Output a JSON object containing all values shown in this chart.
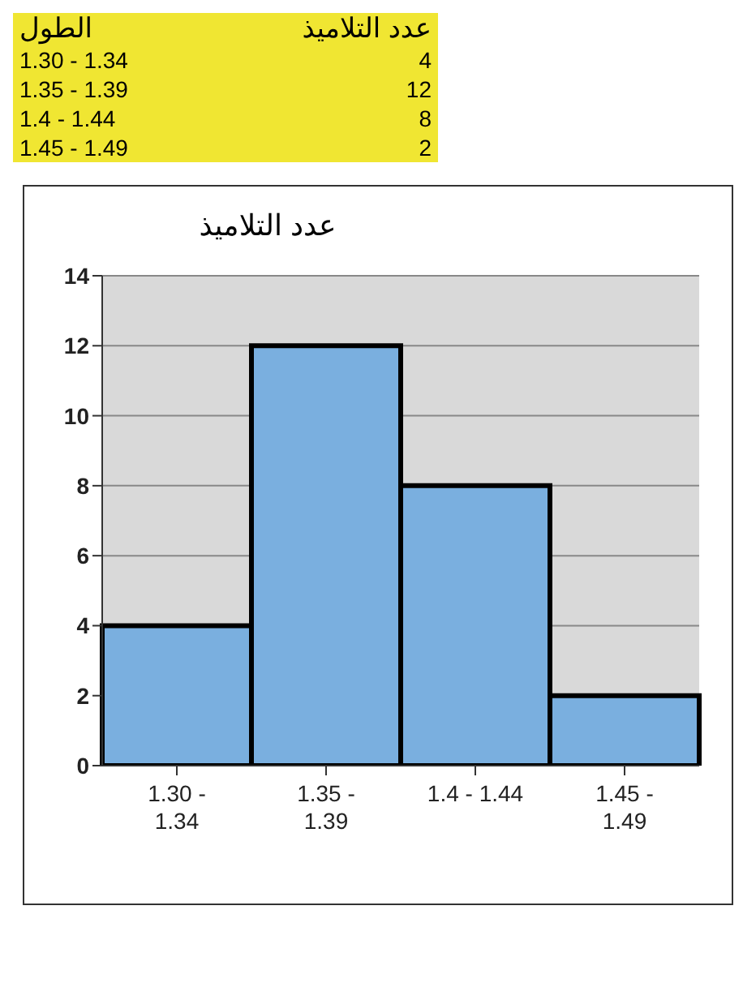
{
  "chart_data": {
    "type": "bar",
    "title": "عدد التلاميذ",
    "annotations": [
      "الطول",
      "عدد التلاميذ",
      "1.30 - 1.34",
      "4",
      "1.35 - 1.39",
      "12",
      "1.4 - 1.44",
      "8",
      "1.45 - 1.49",
      "2"
    ],
    "categories": [
      "1.30 - 1.34",
      "1.35 - 1.39",
      "1.4 - 1.44",
      "1.45 - 1.49"
    ],
    "values": [
      4,
      12,
      8,
      2
    ],
    "color": "#7aafdf",
    "ylim": [
      0,
      14
    ],
    "yticks": [
      0,
      2,
      4,
      6,
      8,
      10,
      12,
      14
    ],
    "grid": "y"
  }
}
